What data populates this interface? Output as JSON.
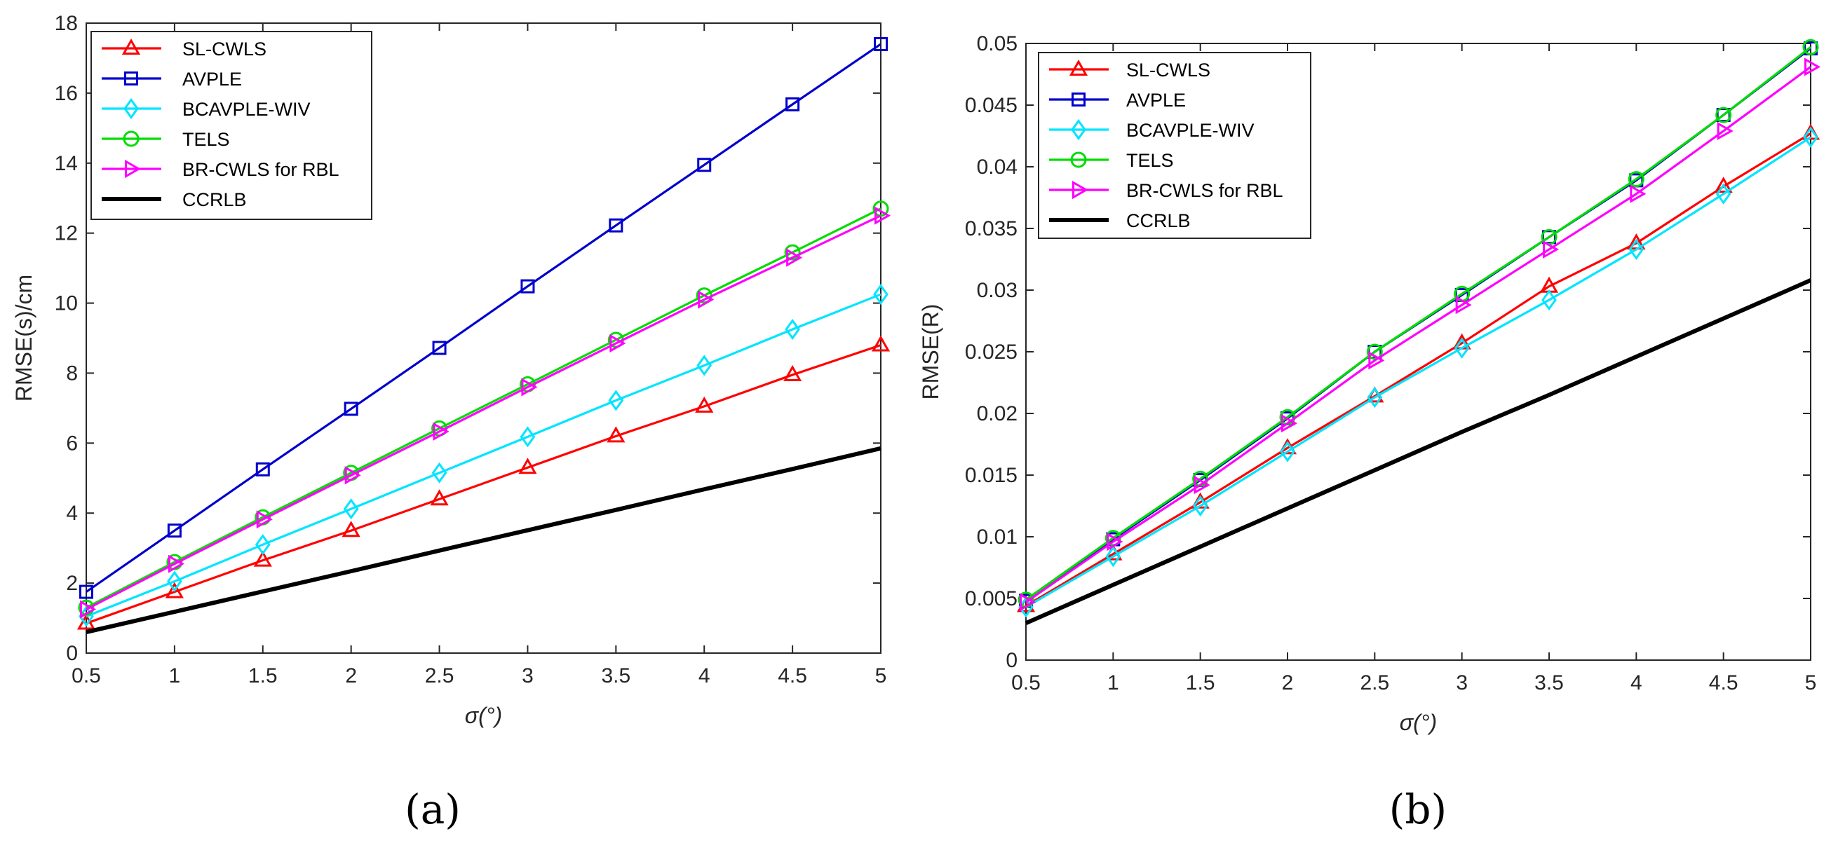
{
  "chart_data": [
    {
      "type": "line",
      "panel_label": "(a)",
      "xlabel": "σ(°)",
      "ylabel": "RMSE(s)/cm",
      "xlim": [
        0.5,
        5
      ],
      "ylim": [
        0,
        18
      ],
      "xticks": [
        "0.5",
        "1",
        "1.5",
        "2",
        "2.5",
        "3",
        "3.5",
        "4",
        "4.5",
        "5"
      ],
      "yticks": [
        "0",
        "2",
        "4",
        "6",
        "8",
        "10",
        "12",
        "14",
        "16",
        "18"
      ],
      "grid": false,
      "legend_position": "top-left",
      "x": [
        0.5,
        1,
        1.5,
        2,
        2.5,
        3,
        3.5,
        4,
        4.5,
        5
      ],
      "series": [
        {
          "name": "SL-CWLS",
          "color": "#ff0000",
          "marker": "triangle-up",
          "values": [
            0.85,
            1.75,
            2.65,
            3.5,
            4.4,
            5.3,
            6.2,
            7.05,
            7.95,
            8.8
          ]
        },
        {
          "name": "AVPLE",
          "color": "#0000cc",
          "marker": "square",
          "values": [
            1.75,
            3.5,
            5.25,
            6.98,
            8.72,
            10.48,
            12.22,
            13.95,
            15.68,
            17.4
          ]
        },
        {
          "name": "BCAVPLE-WIV",
          "color": "#00e5ff",
          "marker": "diamond",
          "values": [
            1.05,
            2.05,
            3.1,
            4.12,
            5.15,
            6.18,
            7.22,
            8.22,
            9.25,
            10.25
          ]
        },
        {
          "name": "TELS",
          "color": "#00dd00",
          "marker": "circle",
          "values": [
            1.3,
            2.6,
            3.88,
            5.15,
            6.42,
            7.68,
            8.95,
            10.22,
            11.45,
            12.7
          ]
        },
        {
          "name": "BR-CWLS for RBL",
          "color": "#ff00ff",
          "marker": "triangle-right",
          "values": [
            1.25,
            2.55,
            3.82,
            5.08,
            6.33,
            7.6,
            8.85,
            10.1,
            11.3,
            12.5
          ]
        },
        {
          "name": "CCRLB",
          "color": "#000000",
          "marker": "none",
          "values": [
            0.6,
            1.18,
            1.76,
            2.34,
            2.93,
            3.51,
            4.09,
            4.68,
            5.26,
            5.85
          ]
        }
      ]
    },
    {
      "type": "line",
      "panel_label": "(b)",
      "xlabel": "σ(°)",
      "ylabel": "RMSE(R)",
      "xlim": [
        0.5,
        5
      ],
      "ylim": [
        0,
        0.05
      ],
      "xticks": [
        "0.5",
        "1",
        "1.5",
        "2",
        "2.5",
        "3",
        "3.5",
        "4",
        "4.5",
        "5"
      ],
      "yticks": [
        "0",
        "0.005",
        "0.01",
        "0.015",
        "0.02",
        "0.025",
        "0.03",
        "0.035",
        "0.04",
        "0.045",
        "0.05"
      ],
      "grid": false,
      "legend_position": "top-left",
      "x": [
        0.5,
        1,
        1.5,
        2,
        2.5,
        3,
        3.5,
        4,
        4.5,
        5
      ],
      "series": [
        {
          "name": "SL-CWLS",
          "color": "#ff0000",
          "marker": "triangle-up",
          "values": [
            0.0044,
            0.0086,
            0.0128,
            0.0172,
            0.0214,
            0.0257,
            0.0303,
            0.0338,
            0.0384,
            0.0427
          ]
        },
        {
          "name": "AVPLE",
          "color": "#0000cc",
          "marker": "square",
          "values": [
            0.0048,
            0.0098,
            0.0146,
            0.0196,
            0.025,
            0.0296,
            0.0343,
            0.0389,
            0.0442,
            0.0496
          ]
        },
        {
          "name": "BCAVPLE-WIV",
          "color": "#00e5ff",
          "marker": "diamond",
          "values": [
            0.0043,
            0.0084,
            0.0125,
            0.0169,
            0.0213,
            0.0253,
            0.0292,
            0.0333,
            0.0378,
            0.0424
          ]
        },
        {
          "name": "TELS",
          "color": "#00dd00",
          "marker": "circle",
          "values": [
            0.0049,
            0.0099,
            0.0147,
            0.0197,
            0.025,
            0.0297,
            0.0343,
            0.039,
            0.0442,
            0.0497
          ]
        },
        {
          "name": "BR-CWLS for RBL",
          "color": "#ff00ff",
          "marker": "triangle-right",
          "values": [
            0.0047,
            0.0096,
            0.0142,
            0.0192,
            0.0243,
            0.0288,
            0.0333,
            0.0378,
            0.0429,
            0.0481
          ]
        },
        {
          "name": "CCRLB",
          "color": "#000000",
          "marker": "none",
          "values": [
            0.003,
            0.0061,
            0.0092,
            0.0123,
            0.0154,
            0.0185,
            0.0215,
            0.0246,
            0.0277,
            0.0308
          ]
        }
      ]
    }
  ]
}
